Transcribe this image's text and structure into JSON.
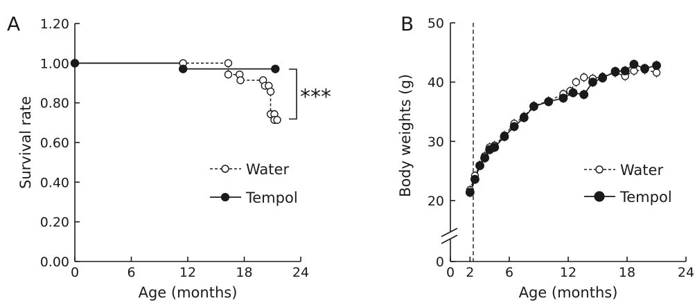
{
  "chart_data": [
    {
      "type": "line",
      "panel": "A",
      "xlabel": "Age (months)",
      "ylabel": "Survival rate",
      "xlim": [
        0,
        24
      ],
      "ylim": [
        0,
        1.2
      ],
      "xticks": [
        0,
        6,
        12,
        18,
        24
      ],
      "yticks": [
        0,
        0.2,
        0.4,
        0.6,
        0.8,
        1.0,
        1.2
      ],
      "ytick_labels": [
        "0.00",
        "0.20",
        "0.40",
        "0.60",
        "0.80",
        "1.00",
        "1.20"
      ],
      "grid": false,
      "legend_position": "right",
      "significance": "***",
      "series": [
        {
          "name": "Water",
          "marker": "open-circle",
          "line": "dashed",
          "points": [
            [
              0,
              1.0
            ],
            [
              11.5,
              1.0
            ],
            [
              16.3,
              1.0
            ],
            [
              16.3,
              0.943
            ],
            [
              17.5,
              0.943
            ],
            [
              17.5,
              0.914
            ],
            [
              20.0,
              0.914
            ],
            [
              20.2,
              0.886
            ],
            [
              20.6,
              0.886
            ],
            [
              20.8,
              0.857
            ],
            [
              20.8,
              0.743
            ],
            [
              21.2,
              0.743
            ],
            [
              21.2,
              0.714
            ],
            [
              21.5,
              0.714
            ]
          ],
          "markers": [
            [
              0,
              1.0
            ],
            [
              11.5,
              1.0
            ],
            [
              16.3,
              1.0
            ],
            [
              16.3,
              0.943
            ],
            [
              17.5,
              0.943
            ],
            [
              17.6,
              0.914
            ],
            [
              20.0,
              0.914
            ],
            [
              20.2,
              0.886
            ],
            [
              20.6,
              0.886
            ],
            [
              20.8,
              0.857
            ],
            [
              20.8,
              0.743
            ],
            [
              21.2,
              0.743
            ],
            [
              21.2,
              0.714
            ],
            [
              21.5,
              0.714
            ]
          ]
        },
        {
          "name": "Tempol",
          "marker": "filled-circle",
          "line": "solid",
          "points": [
            [
              0,
              1.0
            ],
            [
              11.5,
              1.0
            ],
            [
              11.5,
              0.971
            ],
            [
              21.3,
              0.971
            ]
          ],
          "markers": [
            [
              0,
              1.0
            ],
            [
              11.5,
              0.971
            ],
            [
              21.3,
              0.971
            ]
          ]
        }
      ]
    },
    {
      "type": "line",
      "panel": "B",
      "xlabel": "Age (months)",
      "ylabel": "Body weights (g)",
      "xlim": [
        0,
        24
      ],
      "ylim": [
        0,
        50
      ],
      "xticks": [
        0,
        2,
        6,
        12,
        18,
        24
      ],
      "yticks": [
        0,
        20,
        30,
        40,
        50
      ],
      "axis_break": true,
      "vertical_marker_x": 2,
      "grid": false,
      "legend_position": "right",
      "series": [
        {
          "name": "Water",
          "marker": "open-circle",
          "line": "dashed",
          "points": [
            [
              2,
              21.8
            ],
            [
              2.5,
              24.2
            ],
            [
              3,
              26.0
            ],
            [
              3.5,
              27.5
            ],
            [
              4,
              29.0
            ],
            [
              4.5,
              29.3
            ],
            [
              5.5,
              31.0
            ],
            [
              6.5,
              33.0
            ],
            [
              7.5,
              34.2
            ],
            [
              8.5,
              36.0
            ],
            [
              10,
              36.8
            ],
            [
              11.5,
              38.0
            ],
            [
              12.2,
              38.5
            ],
            [
              12.8,
              40.0
            ],
            [
              13.6,
              40.8
            ],
            [
              14.5,
              40.6
            ],
            [
              15.5,
              40.9
            ],
            [
              16.8,
              41.6
            ],
            [
              17.8,
              41.0
            ],
            [
              18.7,
              41.9
            ],
            [
              19.8,
              42.1
            ],
            [
              21,
              41.6
            ]
          ]
        },
        {
          "name": "Tempol",
          "marker": "filled-circle",
          "line": "solid",
          "points": [
            [
              2,
              21.4
            ],
            [
              2.5,
              23.6
            ],
            [
              3,
              25.9
            ],
            [
              3.5,
              27.2
            ],
            [
              4,
              28.6
            ],
            [
              4.5,
              29.0
            ],
            [
              5.5,
              30.8
            ],
            [
              6.5,
              32.5
            ],
            [
              7.5,
              34.0
            ],
            [
              8.5,
              35.9
            ],
            [
              10,
              36.7
            ],
            [
              11.5,
              37.3
            ],
            [
              12.5,
              38.2
            ],
            [
              13.6,
              37.9
            ],
            [
              14.5,
              40.0
            ],
            [
              15.5,
              40.7
            ],
            [
              16.8,
              41.8
            ],
            [
              17.8,
              41.9
            ],
            [
              18.7,
              43.0
            ],
            [
              19.8,
              42.3
            ],
            [
              21,
              42.8
            ]
          ]
        }
      ]
    }
  ],
  "legend": {
    "water": "Water",
    "tempol": "Tempol"
  },
  "panels": {
    "a": "A",
    "b": "B"
  }
}
